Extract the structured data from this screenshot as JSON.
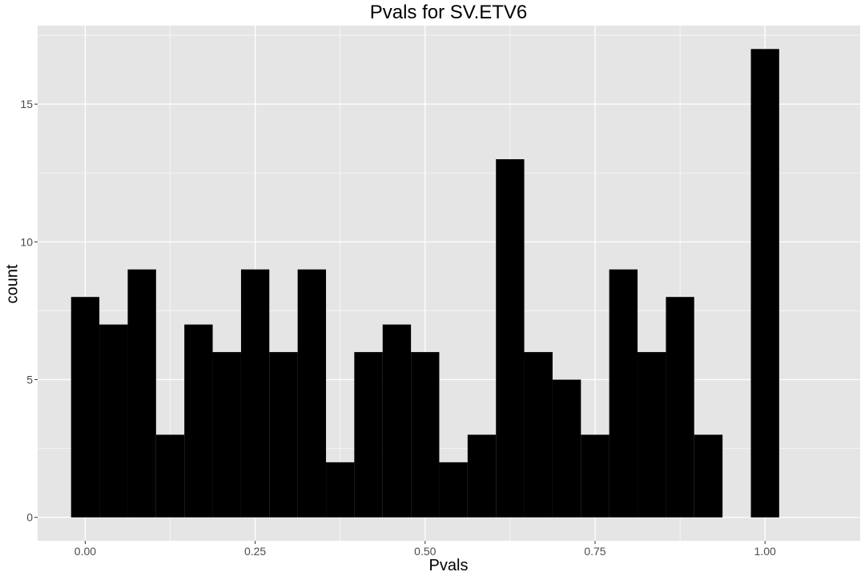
{
  "chart_data": {
    "type": "bar",
    "title": "Pvals for SV.ETV6",
    "xlabel": "Pvals",
    "ylabel": "count",
    "xlim": [
      -0.07,
      1.14
    ],
    "ylim": [
      -0.85,
      17.85
    ],
    "bin_width": 0.0417,
    "bins": [
      {
        "x0": -0.0208,
        "x1": 0.0208,
        "count": 8
      },
      {
        "x0": 0.0208,
        "x1": 0.0625,
        "count": 7
      },
      {
        "x0": 0.0625,
        "x1": 0.1042,
        "count": 9
      },
      {
        "x0": 0.1042,
        "x1": 0.1458,
        "count": 3
      },
      {
        "x0": 0.1458,
        "x1": 0.1875,
        "count": 7
      },
      {
        "x0": 0.1875,
        "x1": 0.2292,
        "count": 6
      },
      {
        "x0": 0.2292,
        "x1": 0.2708,
        "count": 9
      },
      {
        "x0": 0.2708,
        "x1": 0.3125,
        "count": 6
      },
      {
        "x0": 0.3125,
        "x1": 0.3542,
        "count": 9
      },
      {
        "x0": 0.3542,
        "x1": 0.3958,
        "count": 2
      },
      {
        "x0": 0.3958,
        "x1": 0.4375,
        "count": 6
      },
      {
        "x0": 0.4375,
        "x1": 0.4792,
        "count": 7
      },
      {
        "x0": 0.4792,
        "x1": 0.5208,
        "count": 6
      },
      {
        "x0": 0.5208,
        "x1": 0.5625,
        "count": 2
      },
      {
        "x0": 0.5625,
        "x1": 0.6042,
        "count": 3
      },
      {
        "x0": 0.6042,
        "x1": 0.6458,
        "count": 13
      },
      {
        "x0": 0.6458,
        "x1": 0.6875,
        "count": 6
      },
      {
        "x0": 0.6875,
        "x1": 0.7292,
        "count": 5
      },
      {
        "x0": 0.7292,
        "x1": 0.7708,
        "count": 3
      },
      {
        "x0": 0.7708,
        "x1": 0.8125,
        "count": 9
      },
      {
        "x0": 0.8125,
        "x1": 0.8542,
        "count": 6
      },
      {
        "x0": 0.8542,
        "x1": 0.8958,
        "count": 8
      },
      {
        "x0": 0.8958,
        "x1": 0.9375,
        "count": 3
      },
      {
        "x0": 0.9375,
        "x1": 0.9792,
        "count": 0
      },
      {
        "x0": 0.9792,
        "x1": 1.0208,
        "count": 17
      }
    ],
    "x_ticks": [
      {
        "value": 0.0,
        "label": "0.00"
      },
      {
        "value": 0.25,
        "label": "0.25"
      },
      {
        "value": 0.5,
        "label": "0.50"
      },
      {
        "value": 0.75,
        "label": "0.75"
      },
      {
        "value": 1.0,
        "label": "1.00"
      }
    ],
    "y_ticks": [
      {
        "value": 0,
        "label": "0"
      },
      {
        "value": 5,
        "label": "5"
      },
      {
        "value": 10,
        "label": "10"
      },
      {
        "value": 15,
        "label": "15"
      }
    ],
    "grid": true,
    "colors": {
      "panel": "#e5e5e5",
      "grid": "#ffffff",
      "bar": "#000000",
      "tick_text": "#4d4d4d"
    }
  }
}
